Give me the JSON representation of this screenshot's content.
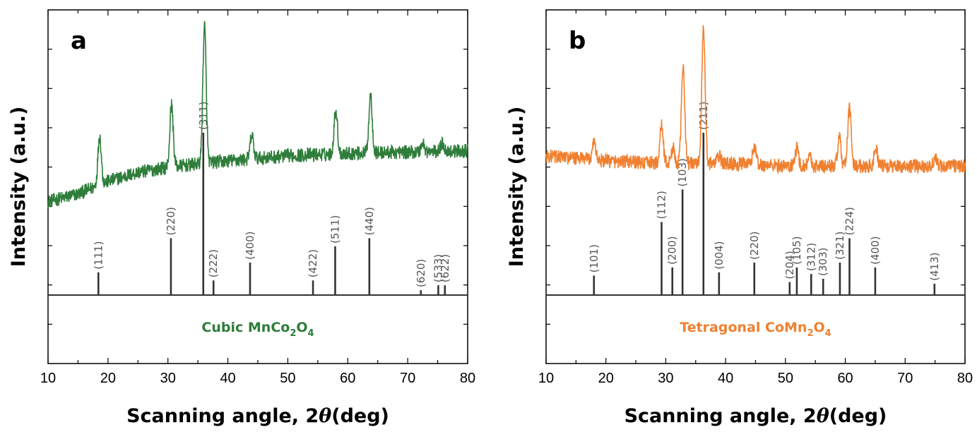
{
  "chart_data": [
    {
      "type": "line",
      "panel_label": "a",
      "phase_text": "Cubic MnCo",
      "phase_sub1": "2",
      "phase_mid": "O",
      "phase_sub2": "4",
      "xlabel_prefix": "Scanning angle, 2",
      "xlabel_symbol": "θ",
      "xlabel_suffix": "(deg)",
      "ylabel": "Intensity (a.u.)",
      "xlim": [
        10,
        80
      ],
      "xticks": [
        "10",
        "20",
        "30",
        "40",
        "50",
        "60",
        "70",
        "80"
      ],
      "color": "#2e7d3a",
      "pattern_baseline": [
        [
          10,
          0.29
        ],
        [
          15,
          0.32
        ],
        [
          20,
          0.37
        ],
        [
          25,
          0.405
        ],
        [
          30,
          0.425
        ],
        [
          40,
          0.45
        ],
        [
          50,
          0.47
        ],
        [
          60,
          0.48
        ],
        [
          70,
          0.485
        ],
        [
          80,
          0.49
        ]
      ],
      "pattern_peaks": [
        {
          "x": 18.6,
          "y": 0.55
        },
        {
          "x": 30.6,
          "y": 0.67
        },
        {
          "x": 36.1,
          "y": 0.98
        },
        {
          "x": 44.0,
          "y": 0.55
        },
        {
          "x": 58.0,
          "y": 0.65
        },
        {
          "x": 63.8,
          "y": 0.71
        },
        {
          "x": 72.5,
          "y": 0.52
        },
        {
          "x": 75.8,
          "y": 0.52
        }
      ],
      "reference_lines": [
        {
          "hkl": "(111)",
          "x": 18.4,
          "intensity": 0.14
        },
        {
          "hkl": "(220)",
          "x": 30.5,
          "intensity": 0.35
        },
        {
          "hkl": "(311)",
          "x": 35.9,
          "intensity": 1.0
        },
        {
          "hkl": "(222)",
          "x": 37.6,
          "intensity": 0.09
        },
        {
          "hkl": "(400)",
          "x": 43.7,
          "intensity": 0.2
        },
        {
          "hkl": "(422)",
          "x": 54.2,
          "intensity": 0.09
        },
        {
          "hkl": "(511)",
          "x": 57.9,
          "intensity": 0.3
        },
        {
          "hkl": "(440)",
          "x": 63.6,
          "intensity": 0.35
        },
        {
          "hkl": "(620)",
          "x": 72.2,
          "intensity": 0.03
        },
        {
          "hkl": "(533)",
          "x": 75.1,
          "intensity": 0.06
        },
        {
          "hkl": "(622)",
          "x": 76.2,
          "intensity": 0.06
        }
      ]
    },
    {
      "type": "line",
      "panel_label": "b",
      "phase_text": "Tetragonal CoMn",
      "phase_sub1": "2",
      "phase_mid": "O",
      "phase_sub2": "4",
      "xlabel_prefix": "Scanning angle, 2",
      "xlabel_symbol": "θ",
      "xlabel_suffix": "(deg)",
      "ylabel": "Intensity (a.u.)",
      "xlim": [
        10,
        80
      ],
      "xticks": [
        "10",
        "20",
        "30",
        "40",
        "50",
        "60",
        "70",
        "80"
      ],
      "color": "#f08030",
      "pattern_baseline": [
        [
          10,
          0.47
        ],
        [
          20,
          0.45
        ],
        [
          30,
          0.44
        ],
        [
          40,
          0.44
        ],
        [
          50,
          0.43
        ],
        [
          60,
          0.43
        ],
        [
          70,
          0.43
        ],
        [
          80,
          0.43
        ]
      ],
      "pattern_peaks": [
        {
          "x": 18.0,
          "y": 0.53
        },
        {
          "x": 29.3,
          "y": 0.59
        },
        {
          "x": 31.2,
          "y": 0.5
        },
        {
          "x": 32.9,
          "y": 0.82
        },
        {
          "x": 36.3,
          "y": 0.97
        },
        {
          "x": 38.9,
          "y": 0.47
        },
        {
          "x": 44.8,
          "y": 0.51
        },
        {
          "x": 51.9,
          "y": 0.5
        },
        {
          "x": 54.0,
          "y": 0.47
        },
        {
          "x": 59.0,
          "y": 0.54
        },
        {
          "x": 60.7,
          "y": 0.66
        },
        {
          "x": 65.1,
          "y": 0.5
        },
        {
          "x": 75.0,
          "y": 0.46
        }
      ],
      "reference_lines": [
        {
          "hkl": "(101)",
          "x": 18.0,
          "intensity": 0.12
        },
        {
          "hkl": "(112)",
          "x": 29.3,
          "intensity": 0.45
        },
        {
          "hkl": "(200)",
          "x": 31.1,
          "intensity": 0.17
        },
        {
          "hkl": "(103)",
          "x": 32.8,
          "intensity": 0.65
        },
        {
          "hkl": "(211)",
          "x": 36.3,
          "intensity": 1.0
        },
        {
          "hkl": "(004)",
          "x": 38.9,
          "intensity": 0.14
        },
        {
          "hkl": "(220)",
          "x": 44.8,
          "intensity": 0.2
        },
        {
          "hkl": "(204)",
          "x": 50.7,
          "intensity": 0.08
        },
        {
          "hkl": "(105)",
          "x": 51.9,
          "intensity": 0.17
        },
        {
          "hkl": "(312)",
          "x": 54.3,
          "intensity": 0.13
        },
        {
          "hkl": "(303)",
          "x": 56.3,
          "intensity": 0.1
        },
        {
          "hkl": "(321)",
          "x": 59.1,
          "intensity": 0.2
        },
        {
          "hkl": "(224)",
          "x": 60.7,
          "intensity": 0.35
        },
        {
          "hkl": "(400)",
          "x": 65.0,
          "intensity": 0.17
        },
        {
          "hkl": "(413)",
          "x": 74.9,
          "intensity": 0.07
        }
      ]
    }
  ]
}
